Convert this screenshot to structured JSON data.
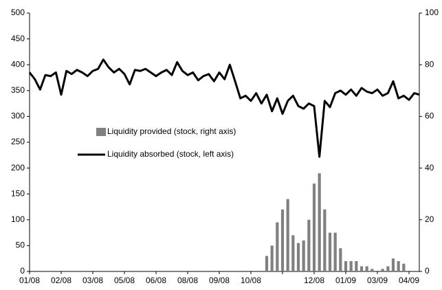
{
  "chart_data": {
    "type": "combo",
    "categories": [
      "01/08",
      null,
      null,
      null,
      null,
      null,
      "02/08",
      null,
      null,
      null,
      null,
      null,
      "03/08",
      null,
      null,
      null,
      null,
      null,
      "05/08",
      null,
      null,
      null,
      null,
      null,
      "06/08",
      null,
      null,
      null,
      null,
      null,
      "08/08",
      null,
      null,
      null,
      null,
      null,
      "09/08",
      null,
      null,
      null,
      null,
      null,
      "10/08",
      null,
      null,
      null,
      null,
      null,
      null,
      null,
      null,
      null,
      null,
      null,
      "12/08",
      null,
      null,
      null,
      null,
      null,
      "01/09",
      null,
      null,
      null,
      null,
      null,
      "03/09",
      null,
      null,
      null,
      null,
      null,
      "04/09",
      null,
      null
    ],
    "series": [
      {
        "name": "Liquidity provided (stock, right axis)",
        "type": "bar",
        "axis": "y2",
        "color": "#808080",
        "values": [
          null,
          null,
          null,
          null,
          null,
          null,
          null,
          null,
          null,
          null,
          null,
          null,
          null,
          null,
          null,
          null,
          null,
          null,
          null,
          null,
          null,
          null,
          null,
          null,
          null,
          null,
          null,
          null,
          null,
          null,
          null,
          null,
          null,
          null,
          null,
          null,
          null,
          null,
          null,
          null,
          null,
          null,
          null,
          null,
          null,
          6,
          10,
          19,
          24,
          28,
          14,
          11,
          12,
          20,
          34,
          38,
          24,
          15,
          15,
          9,
          4,
          4,
          4,
          2,
          2,
          1,
          0,
          1,
          2,
          5,
          4,
          3,
          null,
          null,
          null
        ]
      },
      {
        "name": "Liquidity absorbed (stock, left axis)",
        "type": "line",
        "color": "#000000",
        "values": [
          385,
          372,
          352,
          380,
          378,
          385,
          342,
          388,
          382,
          390,
          385,
          378,
          388,
          392,
          410,
          395,
          385,
          392,
          382,
          362,
          390,
          388,
          392,
          385,
          378,
          385,
          390,
          380,
          405,
          388,
          380,
          385,
          370,
          378,
          382,
          368,
          385,
          372,
          400,
          368,
          335,
          340,
          330,
          345,
          325,
          342,
          310,
          335,
          305,
          330,
          340,
          320,
          315,
          325,
          320,
          222,
          330,
          318,
          345,
          350,
          342,
          352,
          340,
          355,
          348,
          345,
          352,
          340,
          345,
          368,
          335,
          340,
          332,
          345,
          342
        ]
      }
    ],
    "ylim": [
      0,
      500
    ],
    "yticks": [
      0,
      50,
      100,
      150,
      200,
      250,
      300,
      350,
      400,
      450,
      500
    ],
    "y2lim": [
      0,
      100
    ],
    "y2ticks": [
      0,
      20,
      40,
      60,
      80,
      100
    ],
    "grid": false
  }
}
